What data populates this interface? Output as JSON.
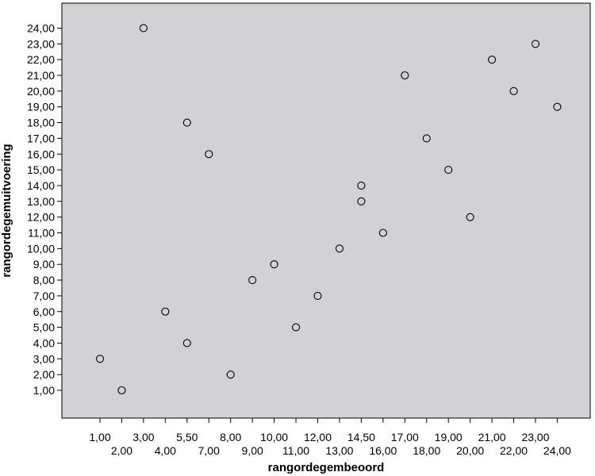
{
  "chart_data": {
    "type": "scatter",
    "xlabel": "rangordegembeoord",
    "ylabel": "rangordegemuitvoering",
    "x_ticks": [
      "1,00",
      "2,00",
      "3,00",
      "4,00",
      "5,50",
      "7,00",
      "8,00",
      "9,00",
      "10,00",
      "11,00",
      "12,00",
      "13,00",
      "14,50",
      "16,00",
      "17,00",
      "18,00",
      "19,00",
      "20,00",
      "21,00",
      "22,00",
      "23,00",
      "24,00"
    ],
    "y_ticks": [
      "1,00",
      "2,00",
      "3,00",
      "4,00",
      "5,00",
      "6,00",
      "7,00",
      "8,00",
      "9,00",
      "10,00",
      "11,00",
      "12,00",
      "13,00",
      "14,00",
      "15,00",
      "16,00",
      "17,00",
      "18,00",
      "19,00",
      "20,00",
      "21,00",
      "22,00",
      "23,00",
      "24,00"
    ],
    "points": [
      {
        "x": 1.0,
        "y": 3.0
      },
      {
        "x": 2.0,
        "y": 1.0
      },
      {
        "x": 3.0,
        "y": 24.0
      },
      {
        "x": 4.0,
        "y": 6.0
      },
      {
        "x": 5.0,
        "y": 18.0
      },
      {
        "x": 5.0,
        "y": 4.0
      },
      {
        "x": 6.0,
        "y": 16.0
      },
      {
        "x": 7.0,
        "y": 2.0
      },
      {
        "x": 8.0,
        "y": 8.0
      },
      {
        "x": 9.0,
        "y": 9.0
      },
      {
        "x": 10.0,
        "y": 5.0
      },
      {
        "x": 11.0,
        "y": 7.0
      },
      {
        "x": 12.0,
        "y": 10.0
      },
      {
        "x": 13.0,
        "y": 14.0
      },
      {
        "x": 13.0,
        "y": 13.0
      },
      {
        "x": 14.0,
        "y": 11.0
      },
      {
        "x": 15.0,
        "y": 21.0
      },
      {
        "x": 16.0,
        "y": 17.0
      },
      {
        "x": 17.0,
        "y": 15.0
      },
      {
        "x": 18.0,
        "y": 12.0
      },
      {
        "x": 19.0,
        "y": 22.0
      },
      {
        "x": 20.0,
        "y": 20.0
      },
      {
        "x": 21.0,
        "y": 23.0
      },
      {
        "x": 22.0,
        "y": 19.0
      }
    ],
    "colors": {
      "plot_background": "#d2d2d4",
      "marker_stroke": "#000000"
    },
    "grid": false,
    "marker": "open-circle"
  }
}
